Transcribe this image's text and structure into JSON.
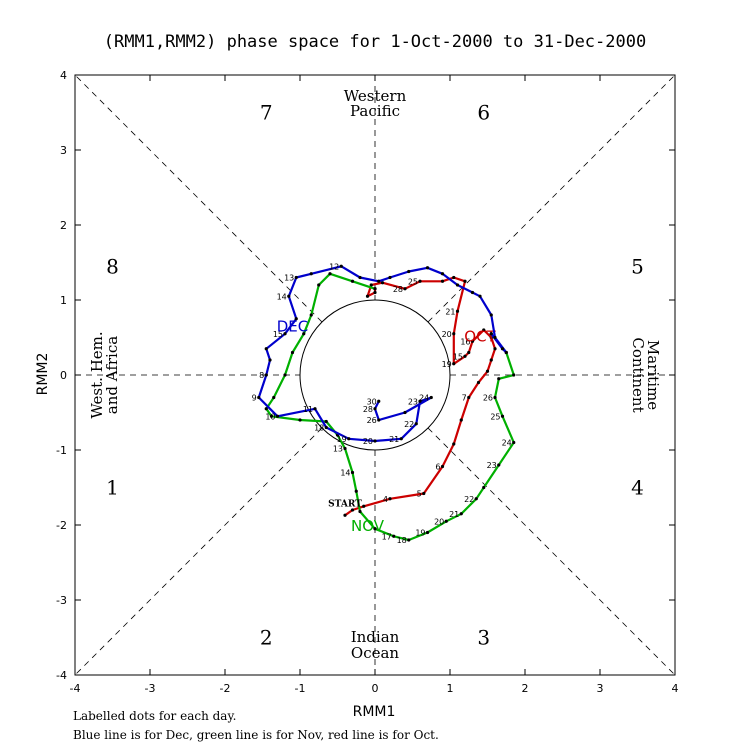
{
  "chart_data": {
    "type": "line",
    "title": "(RMM1,RMM2) phase space for  1-Oct-2000 to 31-Dec-2000",
    "xlabel": "RMM1",
    "ylabel": "RMM2",
    "xlim": [
      -4,
      4
    ],
    "ylim": [
      -4,
      4
    ],
    "x_ticks": [
      "-4",
      "-3",
      "-2",
      "-1",
      "0",
      "1",
      "2",
      "3",
      "4"
    ],
    "y_ticks": [
      "-4",
      "-3",
      "-2",
      "-1",
      "0",
      "1",
      "2",
      "3",
      "4"
    ],
    "unit_circle_radius": 1,
    "phases": [
      {
        "label": "1",
        "x": -3.5,
        "y": -1.5
      },
      {
        "label": "2",
        "x": -1.45,
        "y": -3.5
      },
      {
        "label": "3",
        "x": 1.45,
        "y": -3.5
      },
      {
        "label": "4",
        "x": 3.5,
        "y": -1.5
      },
      {
        "label": "5",
        "x": 3.5,
        "y": 1.45
      },
      {
        "label": "6",
        "x": 1.45,
        "y": 3.5
      },
      {
        "label": "7",
        "x": -1.45,
        "y": 3.5
      },
      {
        "label": "8",
        "x": -3.5,
        "y": 1.45
      }
    ],
    "regions": [
      {
        "name": "top",
        "lines": [
          "Western",
          "Pacific"
        ]
      },
      {
        "name": "bottom",
        "lines": [
          "Indian",
          "Ocean"
        ]
      },
      {
        "name": "left",
        "lines": [
          "West. Hem.",
          "and Africa"
        ]
      },
      {
        "name": "right",
        "lines": [
          "Maritime",
          "Continent"
        ]
      }
    ],
    "start_label": "START",
    "start_point": [
      -0.4,
      -1.83
    ],
    "series": [
      {
        "name": "Oct",
        "color": "#cc0000",
        "month_label": "OCT",
        "month_label_pos": [
          1.4,
          0.45
        ],
        "points": [
          [
            -0.4,
            -1.87
          ],
          [
            -0.3,
            -1.8
          ],
          [
            -0.15,
            -1.75
          ],
          [
            0.2,
            -1.65
          ],
          [
            0.65,
            -1.58
          ],
          [
            0.9,
            -1.22
          ],
          [
            1.05,
            -0.92
          ],
          [
            1.15,
            -0.6
          ],
          [
            1.25,
            -0.3
          ],
          [
            1.38,
            -0.1
          ],
          [
            1.5,
            0.05
          ],
          [
            1.55,
            0.2
          ],
          [
            1.6,
            0.35
          ],
          [
            1.55,
            0.5
          ],
          [
            1.45,
            0.6
          ],
          [
            1.3,
            0.45
          ],
          [
            1.25,
            0.3
          ],
          [
            1.2,
            0.25
          ],
          [
            1.05,
            0.15
          ],
          [
            1.05,
            0.55
          ],
          [
            1.1,
            0.85
          ],
          [
            1.2,
            1.25
          ],
          [
            1.05,
            1.3
          ],
          [
            0.9,
            1.25
          ],
          [
            0.6,
            1.25
          ],
          [
            0.4,
            1.15
          ],
          [
            0.1,
            1.23
          ],
          [
            -0.05,
            1.2
          ],
          [
            -0.1,
            1.05
          ],
          [
            0.0,
            1.1
          ],
          [
            0.0,
            1.15
          ]
        ],
        "labels": [
          {
            "t": "4",
            "i": 3
          },
          {
            "t": "5",
            "i": 4
          },
          {
            "t": "6",
            "i": 5
          },
          {
            "t": "7",
            "i": 8
          },
          {
            "t": "15",
            "i": 17
          },
          {
            "t": "16",
            "i": 15
          },
          {
            "t": "19",
            "i": 18
          },
          {
            "t": "20",
            "i": 19
          },
          {
            "t": "21",
            "i": 20
          },
          {
            "t": "25",
            "i": 24
          },
          {
            "t": "28",
            "i": 25
          }
        ]
      },
      {
        "name": "Nov",
        "color": "#00b000",
        "month_label": "NOV",
        "month_label_pos": [
          -0.1,
          -2.08
        ],
        "points": [
          [
            0.0,
            1.15
          ],
          [
            -0.3,
            1.25
          ],
          [
            -0.6,
            1.35
          ],
          [
            -0.75,
            1.2
          ],
          [
            -0.85,
            0.8
          ],
          [
            -0.95,
            0.55
          ],
          [
            -1.1,
            0.3
          ],
          [
            -1.2,
            0.0
          ],
          [
            -1.35,
            -0.3
          ],
          [
            -1.45,
            -0.45
          ],
          [
            -1.38,
            -0.55
          ],
          [
            -1.0,
            -0.6
          ],
          [
            -0.65,
            -0.62
          ],
          [
            -0.5,
            -0.8
          ],
          [
            -0.4,
            -0.98
          ],
          [
            -0.3,
            -1.3
          ],
          [
            -0.25,
            -1.55
          ],
          [
            -0.2,
            -1.82
          ],
          [
            0.0,
            -2.05
          ],
          [
            0.25,
            -2.15
          ],
          [
            0.45,
            -2.2
          ],
          [
            0.7,
            -2.1
          ],
          [
            0.95,
            -1.95
          ],
          [
            1.15,
            -1.85
          ],
          [
            1.35,
            -1.65
          ],
          [
            1.45,
            -1.5
          ],
          [
            1.65,
            -1.2
          ],
          [
            1.85,
            -0.9
          ],
          [
            1.7,
            -0.55
          ],
          [
            1.6,
            -0.3
          ],
          [
            1.65,
            -0.05
          ],
          [
            1.85,
            0.0
          ],
          [
            1.75,
            0.3
          ],
          [
            1.55,
            0.55
          ]
        ],
        "labels": [
          {
            "t": "13",
            "i": 14
          },
          {
            "t": "14",
            "i": 15
          },
          {
            "t": "17",
            "i": 19
          },
          {
            "t": "18",
            "i": 20
          },
          {
            "t": "19",
            "i": 21
          },
          {
            "t": "20",
            "i": 22
          },
          {
            "t": "21",
            "i": 23
          },
          {
            "t": "22",
            "i": 24
          },
          {
            "t": "23",
            "i": 26
          },
          {
            "t": "24",
            "i": 27
          },
          {
            "t": "25",
            "i": 28
          },
          {
            "t": "26",
            "i": 29
          }
        ]
      },
      {
        "name": "Dec",
        "color": "#0000cc",
        "month_label": "DEC",
        "month_label_pos": [
          -1.1,
          0.58
        ],
        "points": [
          [
            1.55,
            0.55
          ],
          [
            1.7,
            0.35
          ],
          [
            1.75,
            0.3
          ],
          [
            1.6,
            0.5
          ],
          [
            1.55,
            0.8
          ],
          [
            1.4,
            1.05
          ],
          [
            1.3,
            1.1
          ],
          [
            1.1,
            1.2
          ],
          [
            0.9,
            1.35
          ],
          [
            0.7,
            1.43
          ],
          [
            0.45,
            1.38
          ],
          [
            0.2,
            1.3
          ],
          [
            0.05,
            1.25
          ],
          [
            -0.2,
            1.3
          ],
          [
            -0.45,
            1.45
          ],
          [
            -0.85,
            1.35
          ],
          [
            -1.05,
            1.3
          ],
          [
            -1.15,
            1.05
          ],
          [
            -1.05,
            0.75
          ],
          [
            -1.2,
            0.55
          ],
          [
            -1.45,
            0.35
          ],
          [
            -1.4,
            0.2
          ],
          [
            -1.45,
            0.0
          ],
          [
            -1.55,
            -0.3
          ],
          [
            -1.3,
            -0.55
          ],
          [
            -0.8,
            -0.45
          ],
          [
            -0.65,
            -0.7
          ],
          [
            -0.35,
            -0.85
          ],
          [
            0.0,
            -0.88
          ],
          [
            0.35,
            -0.85
          ],
          [
            0.55,
            -0.65
          ],
          [
            0.6,
            -0.35
          ],
          [
            0.75,
            -0.3
          ],
          [
            0.4,
            -0.5
          ],
          [
            0.05,
            -0.6
          ],
          [
            0.0,
            -0.45
          ],
          [
            0.05,
            -0.35
          ]
        ],
        "labels": [
          {
            "t": "12",
            "i": 14
          },
          {
            "t": "13",
            "i": 16
          },
          {
            "t": "14",
            "i": 17
          },
          {
            "t": "15",
            "i": 19
          },
          {
            "t": "8",
            "i": 22
          },
          {
            "t": "9",
            "i": 23
          },
          {
            "t": "10",
            "i": 24
          },
          {
            "t": "11",
            "i": 25
          },
          {
            "t": "18",
            "i": 26
          },
          {
            "t": "19",
            "i": 27
          },
          {
            "t": "20",
            "i": 28
          },
          {
            "t": "21",
            "i": 29
          },
          {
            "t": "22",
            "i": 30
          },
          {
            "t": "23",
            "i": 31
          },
          {
            "t": "24",
            "i": 32
          },
          {
            "t": "26",
            "i": 34
          },
          {
            "t": "28",
            "i": 35
          },
          {
            "t": "30",
            "i": 36
          }
        ]
      }
    ],
    "footer_lines": [
      "Labelled dots for each day.",
      "Blue line is for Dec, green line is for Nov, red line is for Oct."
    ]
  }
}
